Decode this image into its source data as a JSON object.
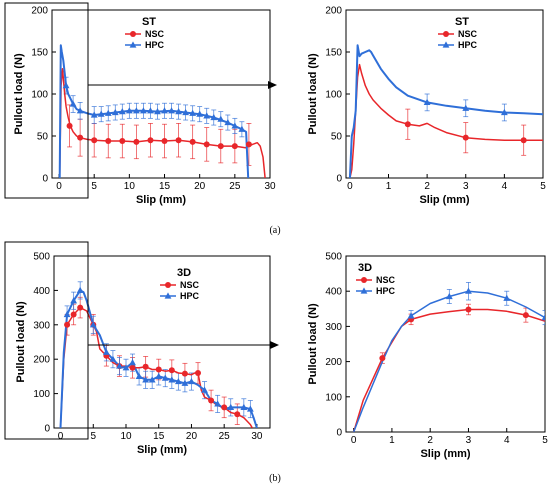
{
  "colors": {
    "NSC": "#e8262a",
    "HPC": "#2f6fd8"
  },
  "captions": [
    "(a)",
    "(b)"
  ],
  "chart_data": [
    {
      "id": "a-left",
      "type": "line",
      "title": "ST",
      "xlabel": "Slip (mm)",
      "ylabel": "Pullout load (N)",
      "xlim": [
        -1,
        30
      ],
      "ylim": [
        0,
        200
      ],
      "xticks": [
        0,
        5,
        10,
        15,
        20,
        25,
        30
      ],
      "yticks": [
        0,
        50,
        100,
        150,
        200
      ],
      "legend_position": "top-center",
      "series": [
        {
          "name": "NSC",
          "marker": "circle",
          "x": [
            0.1,
            0.3,
            0.5,
            0.8,
            1.0,
            1.3,
            1.6,
            2.0,
            2.5,
            3.0,
            4.0,
            5.0,
            7.0,
            9.0,
            11.0,
            13.0,
            15.0,
            17.0,
            19.0,
            21.0,
            23.0,
            25.0,
            26.5,
            27.5,
            28.2,
            28.6,
            29.0,
            29.3
          ],
          "y": [
            0,
            110,
            130,
            100,
            85,
            72,
            62,
            55,
            50,
            48,
            46,
            45,
            44,
            44,
            43,
            45,
            44,
            45,
            43,
            40,
            38,
            38,
            36,
            40,
            42,
            38,
            25,
            0
          ]
        },
        {
          "name": "HPC",
          "marker": "triangle",
          "x": [
            0.1,
            0.25,
            0.4,
            0.6,
            0.8,
            1.0,
            1.3,
            1.6,
            2.0,
            2.5,
            3.0,
            4.0,
            5.0,
            6.0,
            8.0,
            10.0,
            12.0,
            14.0,
            16.0,
            18.0,
            20.0,
            22.0,
            24.0,
            26.0,
            26.6,
            26.9
          ],
          "y": [
            0,
            158,
            150,
            140,
            125,
            110,
            100,
            95,
            88,
            82,
            80,
            77,
            75,
            76,
            78,
            80,
            80,
            79,
            80,
            78,
            76,
            72,
            66,
            58,
            55,
            0
          ]
        }
      ],
      "error_bars": [
        {
          "series": "NSC",
          "x": [
            1.5,
            3,
            5,
            7,
            9,
            11,
            13,
            15,
            17,
            19,
            21,
            23,
            25,
            27
          ],
          "y": [
            62,
            48,
            45,
            44,
            44,
            43,
            45,
            44,
            45,
            43,
            40,
            38,
            38,
            40
          ],
          "err": [
            25,
            22,
            20,
            20,
            20,
            20,
            20,
            20,
            20,
            20,
            20,
            20,
            20,
            25
          ]
        },
        {
          "series": "HPC",
          "x": [
            1,
            2,
            3,
            5,
            6,
            7,
            8,
            9,
            10,
            11,
            12,
            13,
            14,
            15,
            16,
            17,
            18,
            19,
            20,
            21,
            22,
            23,
            24,
            25,
            26
          ],
          "y": [
            110,
            88,
            80,
            75,
            76,
            77,
            78,
            79,
            80,
            80,
            80,
            80,
            79,
            80,
            80,
            79,
            78,
            77,
            76,
            74,
            72,
            70,
            66,
            62,
            58
          ],
          "err": [
            10,
            10,
            10,
            10,
            9,
            9,
            9,
            9,
            9,
            9,
            9,
            9,
            9,
            9,
            9,
            9,
            9,
            9,
            9,
            9,
            9,
            9,
            9,
            9,
            9
          ]
        }
      ]
    },
    {
      "id": "a-right",
      "type": "line",
      "title": "ST",
      "xlabel": "Slip (mm)",
      "ylabel": "Pullout load (N)",
      "xlim": [
        -0.1,
        5
      ],
      "ylim": [
        0,
        200
      ],
      "xticks": [
        0,
        1,
        2,
        3,
        4,
        5
      ],
      "yticks": [
        0,
        50,
        100,
        150,
        200
      ],
      "legend_position": "top-right",
      "series": [
        {
          "name": "NSC",
          "marker": "circle",
          "x": [
            0,
            0.05,
            0.1,
            0.15,
            0.2,
            0.25,
            0.3,
            0.4,
            0.5,
            0.6,
            0.8,
            1.0,
            1.2,
            1.5,
            1.8,
            2.0,
            2.2,
            2.5,
            3.0,
            3.5,
            4.0,
            4.5,
            5.0
          ],
          "y": [
            0,
            10,
            40,
            80,
            120,
            135,
            125,
            110,
            100,
            93,
            83,
            75,
            68,
            64,
            62,
            65,
            60,
            54,
            48,
            46,
            45,
            45,
            45
          ]
        },
        {
          "name": "HPC",
          "marker": "triangle",
          "x": [
            0,
            0.05,
            0.1,
            0.15,
            0.2,
            0.25,
            0.3,
            0.4,
            0.5,
            0.55,
            0.6,
            0.8,
            1.0,
            1.2,
            1.5,
            2.0,
            2.5,
            3.0,
            3.5,
            4.0,
            4.5,
            5.0
          ],
          "y": [
            0,
            50,
            60,
            80,
            158,
            145,
            148,
            150,
            152,
            150,
            146,
            130,
            118,
            108,
            98,
            90,
            86,
            83,
            80,
            78,
            77,
            76
          ]
        }
      ],
      "error_bars": [
        {
          "series": "NSC",
          "x": [
            1.5,
            3.0,
            4.5
          ],
          "y": [
            64,
            48,
            45
          ],
          "err": [
            18,
            18,
            18
          ]
        },
        {
          "series": "HPC",
          "x": [
            2.0,
            3.0,
            4.0
          ],
          "y": [
            90,
            83,
            78
          ],
          "err": [
            10,
            10,
            10
          ]
        }
      ]
    },
    {
      "id": "b-left",
      "type": "line",
      "title": "3D",
      "xlabel": "Slip (mm)",
      "ylabel": "Pullout load (N)",
      "xlim": [
        -1,
        32
      ],
      "ylim": [
        0,
        500
      ],
      "xticks": [
        0,
        5,
        10,
        15,
        20,
        25,
        30
      ],
      "yticks": [
        0,
        100,
        200,
        300,
        400,
        500
      ],
      "legend_position": "top-center",
      "series": [
        {
          "name": "NSC",
          "marker": "circle",
          "x": [
            0,
            0.5,
            1,
            2,
            3,
            4,
            4.5,
            5,
            5.5,
            6,
            7,
            8,
            9,
            10,
            11,
            12,
            13,
            14,
            15,
            16,
            17,
            18,
            19,
            20,
            20.5,
            21,
            21.5,
            22,
            23,
            24,
            25,
            26,
            27,
            28,
            28.5,
            29,
            29.3
          ],
          "y": [
            0,
            200,
            300,
            330,
            350,
            340,
            320,
            300,
            280,
            230,
            210,
            190,
            180,
            180,
            175,
            175,
            178,
            170,
            170,
            165,
            168,
            160,
            158,
            155,
            160,
            160,
            110,
            90,
            80,
            65,
            60,
            45,
            40,
            30,
            20,
            10,
            0
          ]
        },
        {
          "name": "HPC",
          "marker": "triangle",
          "x": [
            0,
            0.5,
            1,
            2,
            3,
            3.5,
            4,
            5,
            6,
            7,
            8,
            9,
            10,
            11,
            12,
            13,
            14,
            15,
            16,
            17,
            18,
            19,
            20,
            21,
            22,
            23,
            24,
            25,
            26,
            27,
            28,
            29,
            29.5,
            30
          ],
          "y": [
            0,
            220,
            330,
            370,
            400,
            395,
            370,
            300,
            270,
            220,
            200,
            180,
            175,
            190,
            150,
            140,
            140,
            150,
            145,
            140,
            135,
            130,
            135,
            125,
            110,
            80,
            70,
            55,
            60,
            60,
            60,
            55,
            30,
            0
          ]
        }
      ],
      "error_bars": [
        {
          "series": "NSC",
          "x": [
            1,
            2,
            3,
            5,
            7,
            9,
            11,
            13,
            15,
            17,
            19,
            21,
            23,
            25,
            27
          ],
          "y": [
            300,
            330,
            350,
            300,
            210,
            180,
            175,
            178,
            170,
            168,
            158,
            160,
            80,
            60,
            40
          ],
          "err": [
            30,
            30,
            30,
            30,
            30,
            30,
            30,
            30,
            30,
            30,
            30,
            30,
            30,
            30,
            30
          ]
        },
        {
          "series": "HPC",
          "x": [
            1,
            2,
            3,
            5,
            7,
            8,
            9,
            10,
            11,
            12,
            13,
            14,
            15,
            16,
            17,
            18,
            19,
            20,
            22,
            24,
            26,
            28,
            29
          ],
          "y": [
            330,
            370,
            400,
            300,
            220,
            200,
            180,
            175,
            190,
            150,
            140,
            140,
            150,
            145,
            140,
            135,
            130,
            135,
            110,
            70,
            60,
            60,
            55
          ],
          "err": [
            25,
            25,
            25,
            25,
            25,
            25,
            25,
            25,
            25,
            25,
            25,
            25,
            25,
            25,
            25,
            25,
            25,
            25,
            25,
            25,
            25,
            25,
            25
          ]
        }
      ]
    },
    {
      "id": "b-right",
      "type": "line",
      "title": "3D",
      "xlabel": "Slip (mm)",
      "ylabel": "Pullout load (N)",
      "xlim": [
        -0.2,
        5
      ],
      "ylim": [
        0,
        500
      ],
      "xticks": [
        0,
        1,
        2,
        3,
        4,
        5
      ],
      "yticks": [
        0,
        100,
        200,
        300,
        400,
        500
      ],
      "legend_position": "top-left",
      "series": [
        {
          "name": "NSC",
          "marker": "circle",
          "x": [
            0,
            0.25,
            0.5,
            0.75,
            1.0,
            1.25,
            1.5,
            2.0,
            2.5,
            3.0,
            3.5,
            4.0,
            4.5,
            5.0
          ],
          "y": [
            0,
            90,
            150,
            210,
            255,
            300,
            320,
            335,
            342,
            348,
            348,
            343,
            332,
            315
          ]
        },
        {
          "name": "HPC",
          "marker": "triangle",
          "x": [
            0,
            0.25,
            0.5,
            0.75,
            1.0,
            1.25,
            1.5,
            2.0,
            2.5,
            3.0,
            3.5,
            4.0,
            4.5,
            5.0
          ],
          "y": [
            0,
            70,
            135,
            200,
            260,
            300,
            330,
            365,
            385,
            400,
            395,
            380,
            355,
            325
          ]
        }
      ],
      "error_bars": [
        {
          "series": "NSC",
          "x": [
            0.75,
            1.5,
            3.0,
            4.5
          ],
          "y": [
            210,
            320,
            348,
            332
          ],
          "err": [
            15,
            15,
            15,
            20
          ]
        },
        {
          "series": "HPC",
          "x": [
            1.5,
            2.5,
            3.0,
            4.0,
            5.0
          ],
          "y": [
            330,
            385,
            400,
            380,
            325
          ],
          "err": [
            15,
            20,
            25,
            20,
            20
          ]
        }
      ]
    }
  ]
}
